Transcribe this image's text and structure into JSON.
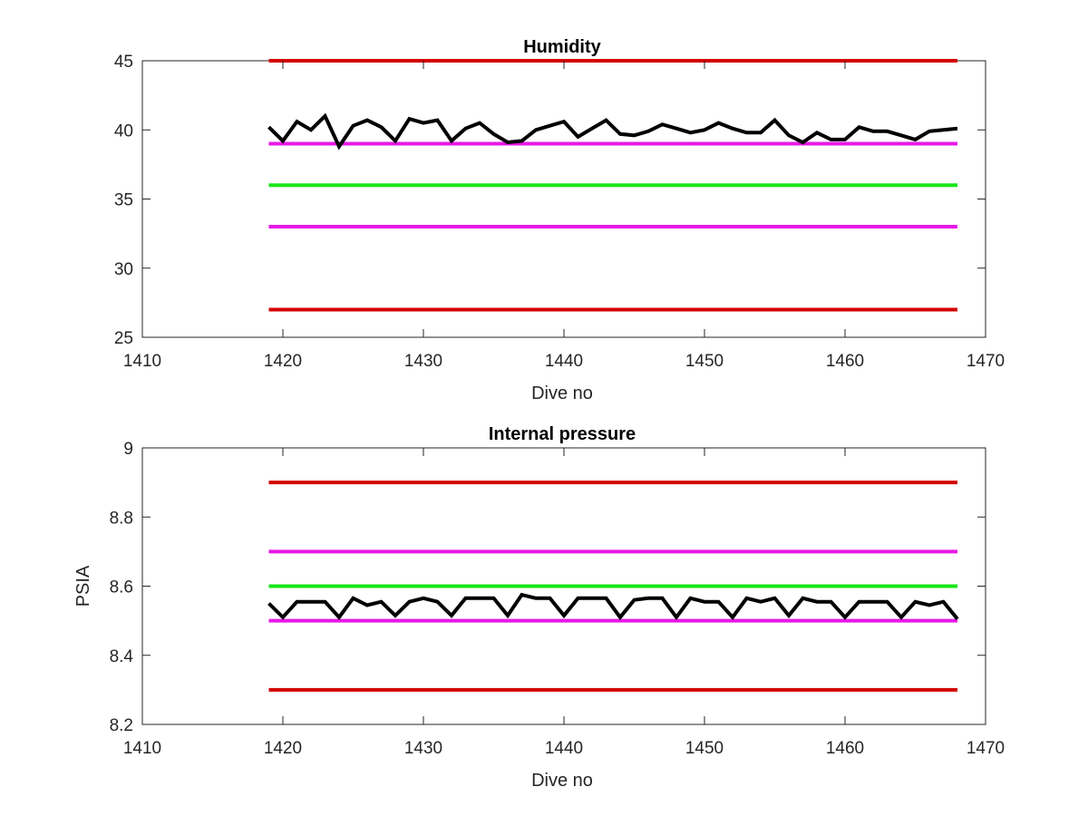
{
  "chart_data": [
    {
      "type": "line",
      "title": "Humidity",
      "xlabel": "Dive no",
      "ylabel": "",
      "xlim": [
        1410,
        1470
      ],
      "ylim": [
        25,
        45
      ],
      "xticks": [
        1410,
        1420,
        1430,
        1440,
        1450,
        1460,
        1470
      ],
      "yticks": [
        25,
        30,
        35,
        40,
        45
      ],
      "grid": false,
      "reference_lines": [
        {
          "y": 45,
          "x_range": [
            1419,
            1468
          ],
          "color": "#d40000"
        },
        {
          "y": 39,
          "x_range": [
            1419,
            1468
          ],
          "color": "#e619e6"
        },
        {
          "y": 36,
          "x_range": [
            1419,
            1468
          ],
          "color": "#19e619"
        },
        {
          "y": 33,
          "x_range": [
            1419,
            1468
          ],
          "color": "#e619e6"
        },
        {
          "y": 27,
          "x_range": [
            1419,
            1468
          ],
          "color": "#d40000"
        }
      ],
      "series": [
        {
          "color": "#000000",
          "x": [
            1419,
            1420,
            1421,
            1422,
            1423,
            1424,
            1425,
            1426,
            1427,
            1428,
            1429,
            1430,
            1431,
            1432,
            1433,
            1434,
            1435,
            1436,
            1437,
            1438,
            1439,
            1440,
            1441,
            1442,
            1443,
            1444,
            1445,
            1446,
            1447,
            1448,
            1449,
            1450,
            1451,
            1452,
            1453,
            1454,
            1455,
            1456,
            1457,
            1458,
            1459,
            1460,
            1461,
            1462,
            1463,
            1464,
            1465,
            1466,
            1467,
            1468
          ],
          "values": [
            40.2,
            39.2,
            40.6,
            40.0,
            41.0,
            38.8,
            40.3,
            40.7,
            40.2,
            39.2,
            40.8,
            40.5,
            40.7,
            39.2,
            40.1,
            40.5,
            39.7,
            39.1,
            39.2,
            40.0,
            40.3,
            40.6,
            39.5,
            40.1,
            40.7,
            39.7,
            39.6,
            39.9,
            40.4,
            40.1,
            39.8,
            40.0,
            40.5,
            40.1,
            39.8,
            39.8,
            40.7,
            39.6,
            39.1,
            39.8,
            39.3,
            39.3,
            40.2,
            39.9,
            39.9,
            39.6,
            39.3,
            39.9,
            40.0,
            40.1
          ]
        }
      ]
    },
    {
      "type": "line",
      "title": "Internal pressure",
      "xlabel": "Dive no",
      "ylabel": "PSIA",
      "xlim": [
        1410,
        1470
      ],
      "ylim": [
        8.2,
        9
      ],
      "xticks": [
        1410,
        1420,
        1430,
        1440,
        1450,
        1460,
        1470
      ],
      "yticks": [
        8.2,
        8.4,
        8.6,
        8.8,
        9
      ],
      "ytick_labels": [
        "8.2",
        "8.4",
        "8.6",
        "8.8",
        "9"
      ],
      "grid": false,
      "reference_lines": [
        {
          "y": 8.9,
          "x_range": [
            1419,
            1468
          ],
          "color": "#d40000"
        },
        {
          "y": 8.7,
          "x_range": [
            1419,
            1468
          ],
          "color": "#e619e6"
        },
        {
          "y": 8.6,
          "x_range": [
            1419,
            1468
          ],
          "color": "#19e619"
        },
        {
          "y": 8.5,
          "x_range": [
            1419,
            1468
          ],
          "color": "#e619e6"
        },
        {
          "y": 8.3,
          "x_range": [
            1419,
            1468
          ],
          "color": "#d40000"
        }
      ],
      "series": [
        {
          "color": "#000000",
          "x": [
            1419,
            1420,
            1421,
            1422,
            1423,
            1424,
            1425,
            1426,
            1427,
            1428,
            1429,
            1430,
            1431,
            1432,
            1433,
            1434,
            1435,
            1436,
            1437,
            1438,
            1439,
            1440,
            1441,
            1442,
            1443,
            1444,
            1445,
            1446,
            1447,
            1448,
            1449,
            1450,
            1451,
            1452,
            1453,
            1454,
            1455,
            1456,
            1457,
            1458,
            1459,
            1460,
            1461,
            1462,
            1463,
            1464,
            1465,
            1466,
            1467,
            1468
          ],
          "values": [
            8.55,
            8.51,
            8.555,
            8.555,
            8.555,
            8.51,
            8.565,
            8.545,
            8.555,
            8.515,
            8.555,
            8.565,
            8.555,
            8.515,
            8.565,
            8.565,
            8.565,
            8.515,
            8.575,
            8.565,
            8.565,
            8.515,
            8.565,
            8.565,
            8.565,
            8.51,
            8.56,
            8.565,
            8.565,
            8.51,
            8.565,
            8.555,
            8.555,
            8.51,
            8.565,
            8.555,
            8.565,
            8.515,
            8.565,
            8.555,
            8.555,
            8.51,
            8.555,
            8.555,
            8.555,
            8.51,
            8.555,
            8.545,
            8.555,
            8.505
          ]
        }
      ]
    }
  ]
}
